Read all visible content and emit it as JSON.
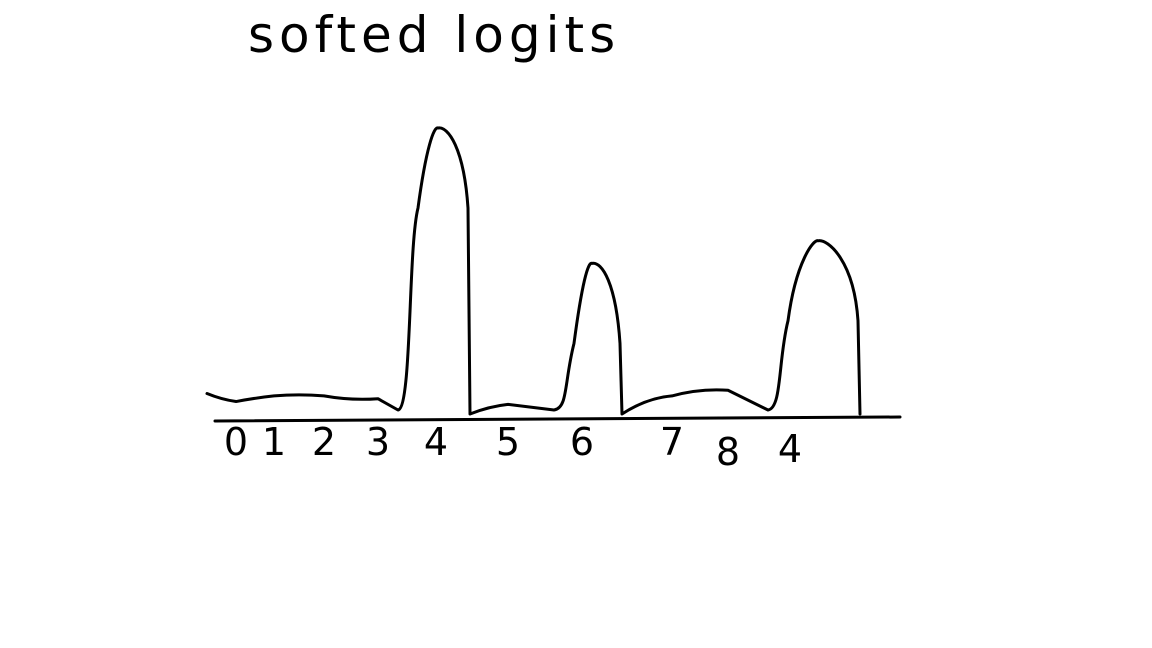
{
  "chart_data": {
    "type": "line",
    "title": "softed logits",
    "categories": [
      "0",
      "1",
      "2",
      "3",
      "4",
      "5",
      "6",
      "7",
      "8",
      "4"
    ],
    "series": [
      {
        "values": [
          0.03,
          0.05,
          0.05,
          0.04,
          1.0,
          0.02,
          0.52,
          0.05,
          0.07,
          0.6
        ]
      }
    ],
    "xlabel": "",
    "ylabel": "",
    "ylim": [
      0,
      1
    ],
    "grid": false
  }
}
